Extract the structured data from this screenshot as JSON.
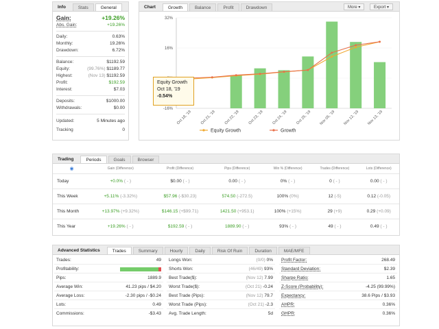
{
  "info": {
    "tabs": [
      "Info",
      "Stats",
      "General"
    ],
    "gain_label": "Gain:",
    "gain_value": "+19.26%",
    "abs_gain_label": "Abs. Gain:",
    "abs_gain_value": "+19.26%",
    "daily_label": "Daily:",
    "daily_value": "0.63%",
    "monthly_label": "Monthly:",
    "monthly_value": "19.26%",
    "drawdown_label": "Drawdown:",
    "drawdown_value": "6.72%",
    "balance_label": "Balance:",
    "balance_value": "$1192.59",
    "equity_label": "Equity:",
    "equity_note": "(99.76%)",
    "equity_value": "$1189.77",
    "highest_label": "Highest:",
    "highest_note": "(Nov 13)",
    "highest_value": "$1192.59",
    "profit_label": "Profit:",
    "profit_value": "$192.59",
    "interest_label": "Interest:",
    "interest_value": "$7.03",
    "deposits_label": "Deposits:",
    "deposits_value": "$1000.00",
    "withdrawals_label": "Withdrawals:",
    "withdrawals_value": "$0.00",
    "updated_label": "Updated:",
    "updated_value": "5 Minutes ago",
    "tracking_label": "Tracking",
    "tracking_value": "0"
  },
  "chart_panel": {
    "tabs": [
      "Chart",
      "Growth",
      "Balance",
      "Profit",
      "Drawdown"
    ],
    "more_label": "More",
    "export_label": "Export",
    "tooltip_title": "Equity Growth",
    "tooltip_date": "Oct 18, '19",
    "tooltip_value": "-0.54%",
    "legend_equity": "Equity Growth",
    "legend_growth": "Growth"
  },
  "chart_data": {
    "type": "line",
    "categories": [
      "Oct 18, '19",
      "Oct 21, '19",
      "Oct 22, '19",
      "Oct 23, '19",
      "Oct 24, '19",
      "Oct 25, '19",
      "Nov 05, '19",
      "Nov 12, '19",
      "Nov 13, '19"
    ],
    "y_ticks": [
      "32%",
      "16%",
      "0%",
      "-16%"
    ],
    "ylim": [
      -16,
      32
    ],
    "bars": [
      0,
      0,
      1.5,
      5.2,
      4.2,
      11.5,
      30,
      19.2,
      8.5
    ],
    "series": [
      {
        "name": "Equity Growth",
        "values": [
          -0.54,
          0.3,
          1.3,
          2.1,
          3.3,
          4.3,
          11.4,
          16.4,
          19.3
        ],
        "color": "#f0a830"
      },
      {
        "name": "Growth",
        "values": [
          0,
          0.5,
          1.6,
          2.3,
          3.4,
          4.3,
          13.5,
          17.5,
          19.3
        ],
        "color": "#e8704a"
      }
    ],
    "bar_color": "#85d07c"
  },
  "trading": {
    "tabs": [
      "Trading",
      "Periods",
      "Goals",
      "Browser"
    ],
    "headers": [
      "Gain (Difference)",
      "Profit (Difference)",
      "Pips (Difference)",
      "Win % (Difference)",
      "Trades (Difference)",
      "Lots (Difference)"
    ],
    "rows": [
      {
        "label": "Today",
        "gain": "+0.0%",
        "gain_diff": "( - )",
        "profit": "$0.00",
        "profit_diff": "( - )",
        "pips": "0.00",
        "pips_diff": "( - )",
        "win": "0%",
        "win_diff": "( - )",
        "trades": "0",
        "trades_diff": "( - )",
        "lots": "0.00",
        "lots_diff": "( - )"
      },
      {
        "label": "This Week",
        "gain": "+5.11%",
        "gain_diff": "(-3.32%)",
        "profit": "$57.96",
        "profit_diff": "(-$30.23)",
        "pips": "574.50",
        "pips_diff": "(-272.5)",
        "win": "100%",
        "win_diff": "(0%)",
        "trades": "12",
        "trades_diff": "(-5)",
        "lots": "0.12",
        "lots_diff": "(-0.05)"
      },
      {
        "label": "This Month",
        "gain": "+13.97%",
        "gain_diff": "(+9.32%)",
        "profit": "$146.15",
        "profit_diff": "(+$99.71)",
        "pips": "1421.50",
        "pips_diff": "(+953.1)",
        "win": "100%",
        "win_diff": "(+15%)",
        "trades": "29",
        "trades_diff": "(+9)",
        "lots": "0.29",
        "lots_diff": "(+0.09)"
      },
      {
        "label": "This Year",
        "gain": "+19.26%",
        "gain_diff": "( - )",
        "profit": "$192.59",
        "profit_diff": "( - )",
        "pips": "1889.90",
        "pips_diff": "( - )",
        "win": "93%",
        "win_diff": "( - )",
        "trades": "49",
        "trades_diff": "( - )",
        "lots": "0.49",
        "lots_diff": "( - )"
      }
    ]
  },
  "advanced": {
    "tabs": [
      "Advanced Statistics",
      "Trades",
      "Summary",
      "Hourly",
      "Daily",
      "Risk Of Ruin",
      "Duration",
      "MAE/MFE"
    ],
    "col1": [
      {
        "label": "Trades:",
        "note": "",
        "value": "49"
      },
      {
        "label": "Profitability:",
        "note": "",
        "value": ""
      },
      {
        "label": "Pips:",
        "note": "",
        "value": "1889.9"
      },
      {
        "label": "Average Win:",
        "note": "",
        "value": "41.23 pips / $4.20"
      },
      {
        "label": "Average Loss:",
        "note": "",
        "value": "-2.30 pips / -$0.24"
      },
      {
        "label": "Lots:",
        "note": "",
        "value": "0.49"
      },
      {
        "label": "Commissions:",
        "note": "",
        "value": "-$3.43"
      }
    ],
    "profitability_win_pct": 0.93,
    "col2": [
      {
        "label": "Longs Won:",
        "note": "(0/0)",
        "value": "0%"
      },
      {
        "label": "Shorts Won:",
        "note": "(46/49)",
        "value": "93%"
      },
      {
        "label": "Best Trade($):",
        "note": "(Nov 12)",
        "value": "7.99"
      },
      {
        "label": "Worst Trade($):",
        "note": "(Oct 21)",
        "value": "-0.24"
      },
      {
        "label": "Best Trade (Pips):",
        "note": "(Nov 12)",
        "value": "79.7"
      },
      {
        "label": "Worst Trade (Pips):",
        "note": "(Oct 21)",
        "value": "-2.3"
      },
      {
        "label": "Avg. Trade Length:",
        "note": "",
        "value": "5d"
      }
    ],
    "col3": [
      {
        "label": "Profit Factor:",
        "value": "268.49"
      },
      {
        "label": "Standard Deviation:",
        "value": "$2.39"
      },
      {
        "label": "Sharpe Ratio:",
        "value": "1.65"
      },
      {
        "label": "Z-Score (Probability):",
        "value": "-4.25 (99.99%)"
      },
      {
        "label": "Expectancy:",
        "value": "38.6 Pips / $3.93"
      },
      {
        "label": "AHPR:",
        "value": "0.36%"
      },
      {
        "label": "GHPR:",
        "value": "0.36%"
      }
    ]
  }
}
